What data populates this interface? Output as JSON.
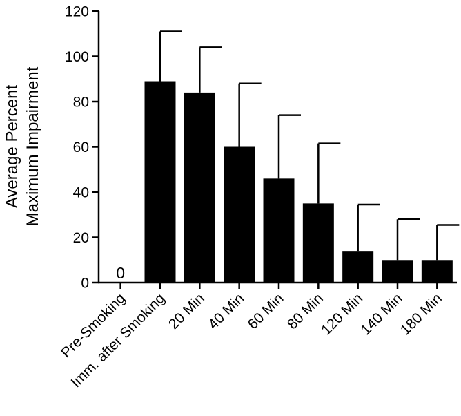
{
  "chart_data": {
    "type": "bar",
    "title": "",
    "xlabel": "",
    "ylabel_lines": [
      "Average Percent",
      "Maximum Impairment"
    ],
    "ylim": [
      0,
      120
    ],
    "yticks": [
      0,
      20,
      40,
      60,
      80,
      100,
      120
    ],
    "ytick_labels": [
      "0",
      "20",
      "40",
      "60",
      "80",
      "100",
      "120"
    ],
    "categories": [
      "Pre-Smoking",
      "Imm. after Smoking",
      "20 Min",
      "40 Min",
      "60 Min",
      "80 Min",
      "120 Min",
      "140 Min",
      "180 Min"
    ],
    "values": [
      0,
      89,
      84,
      60,
      46,
      35,
      14,
      10,
      10
    ],
    "error_upper": [
      0,
      111,
      104,
      88,
      74,
      61.5,
      34.5,
      28,
      25.5
    ],
    "value_labels": [
      "0",
      "",
      "",
      "",
      "",
      "",
      "",
      "",
      ""
    ],
    "grid": false,
    "colors": {
      "bar": "#000000",
      "axis": "#000000"
    }
  }
}
